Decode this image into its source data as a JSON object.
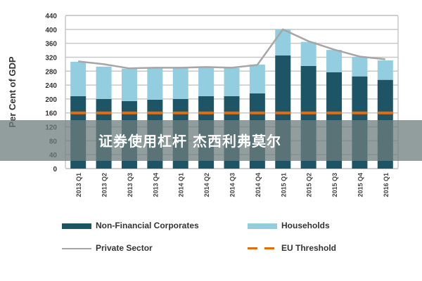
{
  "chart_data": {
    "type": "bar",
    "title": "",
    "ylabel": "Per Cent of GDP",
    "xlabel": "",
    "ylim": [
      0,
      440
    ],
    "yticks": [
      0,
      40,
      80,
      120,
      160,
      200,
      240,
      280,
      320,
      360,
      400,
      440
    ],
    "grid": true,
    "categories": [
      "2013 Q1",
      "2013 Q2",
      "2013 Q3",
      "2013 Q4",
      "2014 Q1",
      "2014 Q2",
      "2014 Q3",
      "2014 Q4",
      "2015 Q1",
      "2015 Q2",
      "2015 Q3",
      "2015 Q4",
      "2016 Q1"
    ],
    "series": [
      {
        "name": "Non-Financial Corporates",
        "type": "bar",
        "color": "#1d5566",
        "values": [
          208,
          200,
          194,
          198,
          200,
          208,
          208,
          216,
          325,
          295,
          277,
          265,
          255
        ]
      },
      {
        "name": "Households",
        "type": "bar",
        "color": "#93cde0",
        "values": [
          99,
          93,
          93,
          91,
          89,
          83,
          81,
          83,
          75,
          69,
          64,
          56,
          56
        ]
      },
      {
        "name": "Private Sector",
        "type": "line",
        "color": "#a6a6a6",
        "values": [
          308,
          300,
          288,
          290,
          290,
          292,
          290,
          298,
          400,
          366,
          342,
          322,
          314
        ]
      },
      {
        "name": "EU Threshold",
        "type": "dashed",
        "color": "#e46c0a",
        "values": [
          160,
          160,
          160,
          160,
          160,
          160,
          160,
          160,
          160,
          160,
          160,
          160,
          160
        ]
      }
    ],
    "legend_position": "bottom"
  },
  "banner": {
    "text": "证券使用杠杆 杰西利弗莫尔"
  }
}
